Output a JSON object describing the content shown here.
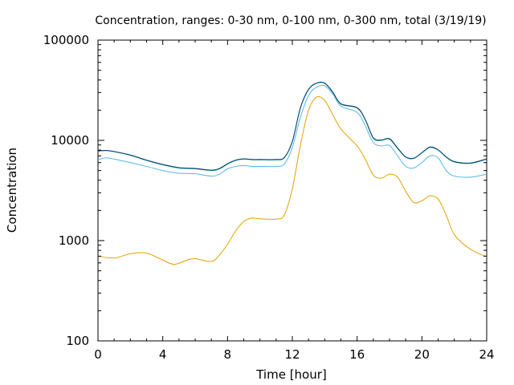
{
  "chart_data": {
    "type": "line",
    "title": "Concentration, ranges: 0-30 nm, 0-100 nm, 0-300 nm, total (3/19/19)",
    "xlabel": "Time [hour]",
    "ylabel": "Concentration",
    "xlim": [
      0,
      24
    ],
    "ylim": [
      100,
      100000
    ],
    "yscale": "log",
    "grid": false,
    "legend": "none",
    "xticks": [
      "0",
      "4",
      "8",
      "12",
      "16",
      "20",
      "24"
    ],
    "yticks": [
      "100",
      "1000",
      "10000",
      "100000"
    ],
    "series": [
      {
        "color": "#e69f00",
        "x": [
          0,
          1,
          2,
          3,
          4,
          4.7,
          5.5,
          6,
          7,
          7.5,
          8,
          8.5,
          9,
          9.5,
          10,
          11,
          11.5,
          12,
          12.5,
          13,
          13.5,
          14,
          14.5,
          15,
          16,
          16.5,
          17,
          17.5,
          18,
          18.5,
          19,
          19.5,
          20,
          20.5,
          21,
          21.5,
          22,
          23,
          24
        ],
        "y": [
          700,
          670,
          740,
          750,
          640,
          580,
          640,
          660,
          620,
          720,
          920,
          1250,
          1550,
          1680,
          1650,
          1640,
          1800,
          3300,
          9000,
          20000,
          27000,
          25000,
          18000,
          13000,
          8800,
          6500,
          4500,
          4200,
          4600,
          4300,
          3100,
          2400,
          2500,
          2800,
          2600,
          1800,
          1150,
          820,
          690
        ]
      },
      {
        "color": "#56b4e9",
        "x": [
          0,
          0.5,
          1,
          2,
          3,
          4,
          5,
          6,
          7,
          7.5,
          8,
          8.5,
          9,
          9.5,
          10,
          11,
          11.5,
          12,
          12.5,
          13,
          13.5,
          14,
          14.5,
          15,
          16,
          16.5,
          17,
          17.5,
          18,
          18.5,
          19,
          19.5,
          20,
          20.5,
          21,
          21.5,
          22,
          23,
          24
        ],
        "y": [
          6400,
          6700,
          6500,
          6000,
          5500,
          5000,
          4700,
          4650,
          4400,
          4600,
          5200,
          5500,
          5600,
          5500,
          5500,
          5500,
          5800,
          8500,
          17000,
          28000,
          34000,
          35000,
          29000,
          22000,
          19000,
          14000,
          9500,
          8800,
          8900,
          7000,
          5500,
          5300,
          6000,
          7000,
          6700,
          5000,
          4400,
          4300,
          4600
        ]
      },
      {
        "color": "#009e73",
        "x": [
          0,
          0.5,
          1,
          2,
          3,
          4,
          5,
          6,
          7,
          7.5,
          8,
          8.5,
          9,
          9.5,
          10,
          11,
          11.5,
          12,
          12.5,
          13,
          13.5,
          14,
          14.5,
          15,
          16,
          16.5,
          17,
          17.5,
          18,
          18.5,
          19,
          19.5,
          20,
          20.5,
          21,
          21.5,
          22,
          23,
          24
        ],
        "y": [
          7800,
          7900,
          7700,
          7100,
          6300,
          5700,
          5300,
          5200,
          5000,
          5200,
          5800,
          6300,
          6500,
          6400,
          6400,
          6400,
          6700,
          9700,
          21000,
          32000,
          37000,
          37000,
          30000,
          23000,
          21000,
          16000,
          10500,
          10000,
          10300,
          8300,
          6800,
          6600,
          7500,
          8500,
          8000,
          6800,
          6100,
          5900,
          6500
        ]
      },
      {
        "color": "#0e3f7a",
        "x": [
          0,
          0.5,
          1,
          2,
          3,
          4,
          5,
          6,
          7,
          7.5,
          8,
          8.5,
          9,
          9.5,
          10,
          11,
          11.5,
          12,
          12.5,
          13,
          13.5,
          14,
          14.5,
          15,
          16,
          16.5,
          17,
          17.5,
          18,
          18.5,
          19,
          19.5,
          20,
          20.5,
          21,
          21.5,
          22,
          23,
          24
        ],
        "y": [
          7850,
          7950,
          7750,
          7150,
          6350,
          5750,
          5350,
          5250,
          5050,
          5250,
          5850,
          6350,
          6550,
          6450,
          6450,
          6450,
          6750,
          9800,
          21200,
          32300,
          37300,
          37300,
          30300,
          23200,
          21200,
          16200,
          10600,
          10100,
          10400,
          8400,
          6850,
          6650,
          7550,
          8600,
          8050,
          6850,
          6150,
          5950,
          6550
        ]
      }
    ]
  }
}
